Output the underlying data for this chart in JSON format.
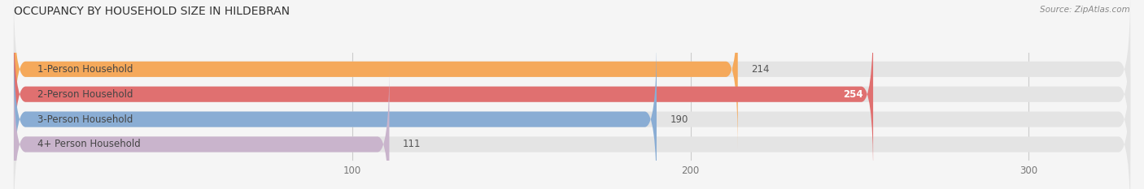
{
  "title": "OCCUPANCY BY HOUSEHOLD SIZE IN HILDEBRAN",
  "source": "Source: ZipAtlas.com",
  "categories": [
    "1-Person Household",
    "2-Person Household",
    "3-Person Household",
    "4+ Person Household"
  ],
  "values": [
    214,
    254,
    190,
    111
  ],
  "bar_colors": [
    "#F5A95B",
    "#E07070",
    "#8AADD4",
    "#C9B4CC"
  ],
  "bar_bg_color": "#E4E4E4",
  "value_label_colors": [
    "#666666",
    "#ffffff",
    "#666666",
    "#666666"
  ],
  "xlim": [
    0,
    330
  ],
  "xticks": [
    100,
    200,
    300
  ],
  "bar_height": 0.62,
  "figsize": [
    14.06,
    2.33
  ],
  "dpi": 100,
  "background_color": "#f5f5f5",
  "title_fontsize": 10,
  "label_fontsize": 8.5,
  "value_fontsize": 8.5,
  "tick_fontsize": 8.5
}
